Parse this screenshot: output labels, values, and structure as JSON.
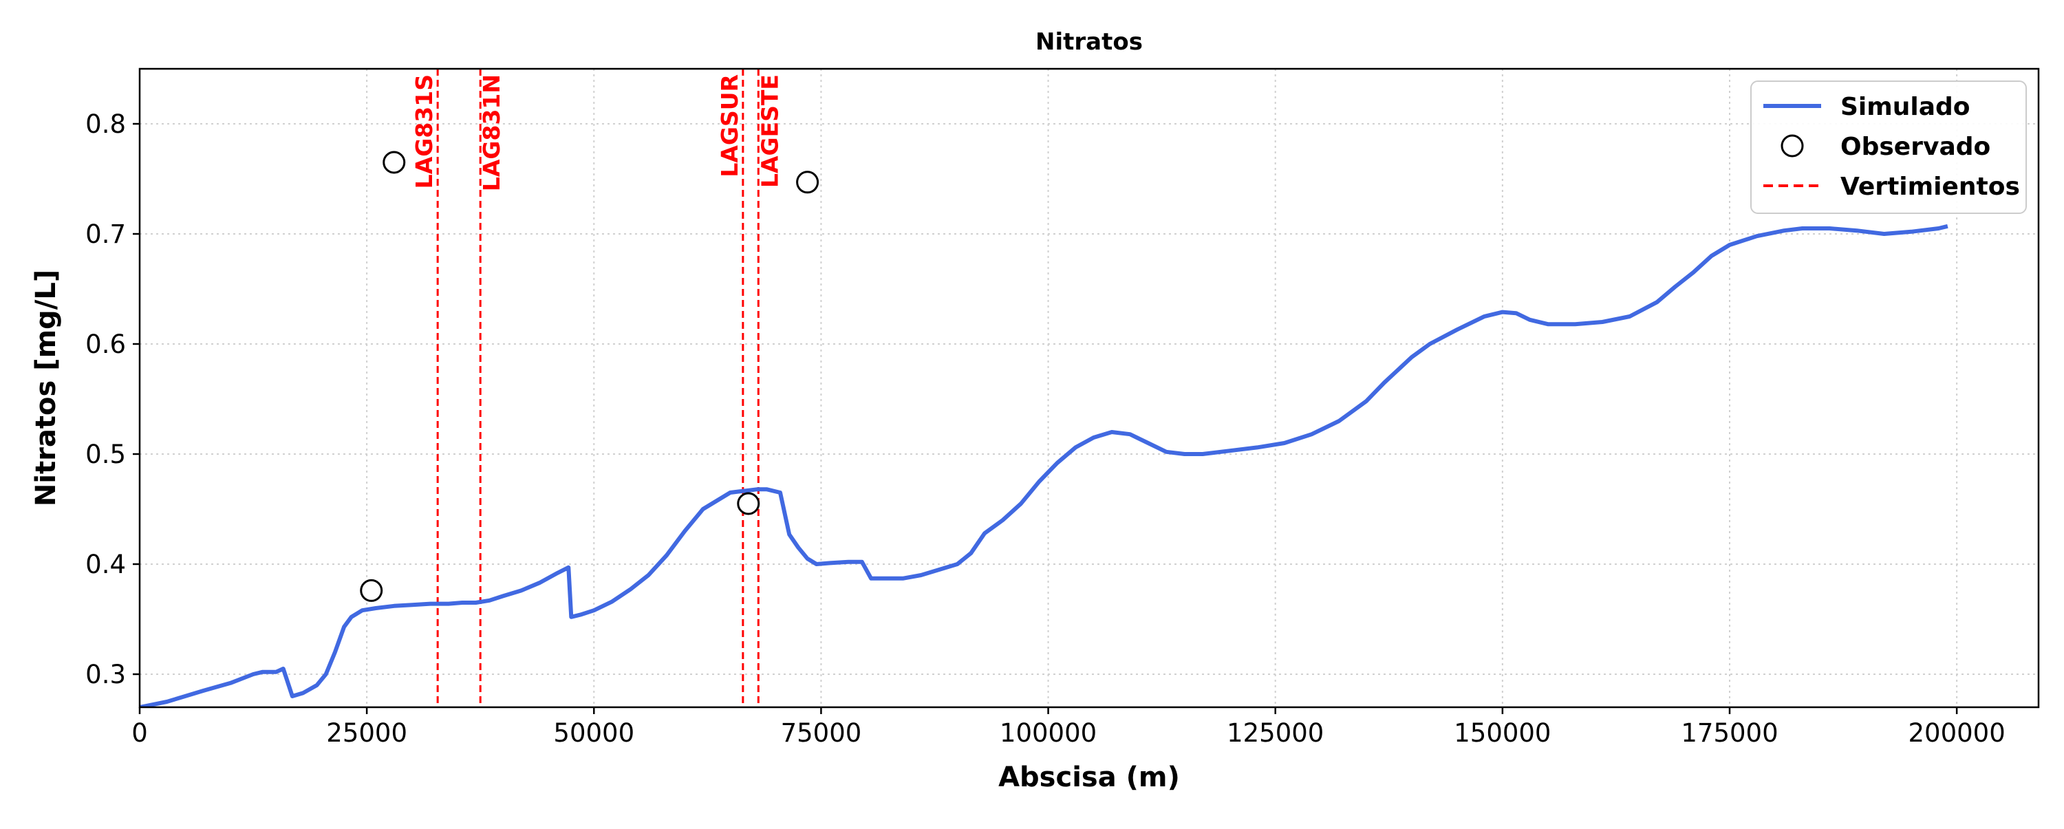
{
  "chart_data": {
    "type": "line",
    "title": "Nitratos",
    "xlabel": "Abscisa (m)",
    "ylabel": "Nitratos [mg/L]",
    "xlim": [
      0,
      209000
    ],
    "ylim": [
      0.27,
      0.85
    ],
    "xticks": [
      0,
      25000,
      50000,
      75000,
      100000,
      125000,
      150000,
      175000,
      200000
    ],
    "yticks": [
      0.3,
      0.4,
      0.5,
      0.6,
      0.7,
      0.8
    ],
    "grid": true,
    "legend_position": "top-right",
    "legend": [
      {
        "key": "simulado",
        "label": "Simulado",
        "kind": "line",
        "color": "#4169e1"
      },
      {
        "key": "observado",
        "label": "Observado",
        "kind": "marker",
        "color": "#000000"
      },
      {
        "key": "vertimientos",
        "label": "Vertimientos",
        "kind": "dashed",
        "color": "#ff0000"
      }
    ],
    "series": [
      {
        "name": "Simulado",
        "color": "#4169e1",
        "x": [
          0,
          3000,
          5000,
          7000,
          10000,
          12500,
          13500,
          15000,
          15800,
          16800,
          18000,
          19500,
          20500,
          21500,
          22500,
          23300,
          24500,
          26000,
          28000,
          30000,
          32000,
          34000,
          35500,
          37000,
          38500,
          40000,
          42000,
          44000,
          46000,
          47200,
          47500,
          48500,
          50000,
          52000,
          54000,
          56000,
          58000,
          60000,
          62000,
          64000,
          65000,
          66000,
          67000,
          68000,
          69000,
          70500,
          71500,
          72500,
          73500,
          74500,
          76000,
          78000,
          79500,
          80500,
          82000,
          84000,
          86000,
          88000,
          90000,
          91500,
          93000,
          95000,
          97000,
          99000,
          101000,
          103000,
          105000,
          107000,
          109000,
          111000,
          113000,
          115000,
          117000,
          120000,
          123000,
          126000,
          129000,
          132000,
          135000,
          137000,
          140000,
          142000,
          145000,
          148000,
          150000,
          151500,
          153000,
          155000,
          158000,
          161000,
          164000,
          167000,
          169000,
          171000,
          173000,
          175000,
          178000,
          181000,
          183000,
          186000,
          189000,
          192000,
          195000,
          198000,
          199000
        ],
        "values": [
          0.27,
          0.275,
          0.28,
          0.285,
          0.292,
          0.3,
          0.302,
          0.302,
          0.305,
          0.28,
          0.283,
          0.29,
          0.3,
          0.32,
          0.343,
          0.352,
          0.358,
          0.36,
          0.362,
          0.363,
          0.364,
          0.364,
          0.365,
          0.365,
          0.367,
          0.371,
          0.376,
          0.383,
          0.392,
          0.397,
          0.352,
          0.354,
          0.358,
          0.366,
          0.377,
          0.39,
          0.408,
          0.43,
          0.45,
          0.46,
          0.465,
          0.466,
          0.467,
          0.468,
          0.468,
          0.465,
          0.427,
          0.415,
          0.405,
          0.4,
          0.401,
          0.402,
          0.402,
          0.387,
          0.387,
          0.387,
          0.39,
          0.395,
          0.4,
          0.41,
          0.428,
          0.44,
          0.455,
          0.475,
          0.492,
          0.506,
          0.515,
          0.52,
          0.518,
          0.51,
          0.502,
          0.5,
          0.5,
          0.503,
          0.506,
          0.51,
          0.518,
          0.53,
          0.548,
          0.565,
          0.588,
          0.6,
          0.613,
          0.625,
          0.629,
          0.628,
          0.622,
          0.618,
          0.618,
          0.62,
          0.625,
          0.638,
          0.652,
          0.665,
          0.68,
          0.69,
          0.698,
          0.703,
          0.705,
          0.705,
          0.703,
          0.7,
          0.702,
          0.705,
          0.707
        ]
      }
    ],
    "observed": {
      "name": "Observado",
      "points": [
        {
          "x": 25500,
          "y": 0.376
        },
        {
          "x": 28000,
          "y": 0.765
        },
        {
          "x": 67000,
          "y": 0.455
        },
        {
          "x": 73500,
          "y": 0.747
        }
      ]
    },
    "vertimientos": [
      {
        "x": 32800,
        "label": "LAG831S",
        "label_side": "left"
      },
      {
        "x": 37500,
        "label": "LAG831N",
        "label_side": "right"
      },
      {
        "x": 66400,
        "label": "LAGSUR",
        "label_side": "left"
      },
      {
        "x": 68100,
        "label": "LAGESTE",
        "label_side": "right"
      }
    ]
  }
}
